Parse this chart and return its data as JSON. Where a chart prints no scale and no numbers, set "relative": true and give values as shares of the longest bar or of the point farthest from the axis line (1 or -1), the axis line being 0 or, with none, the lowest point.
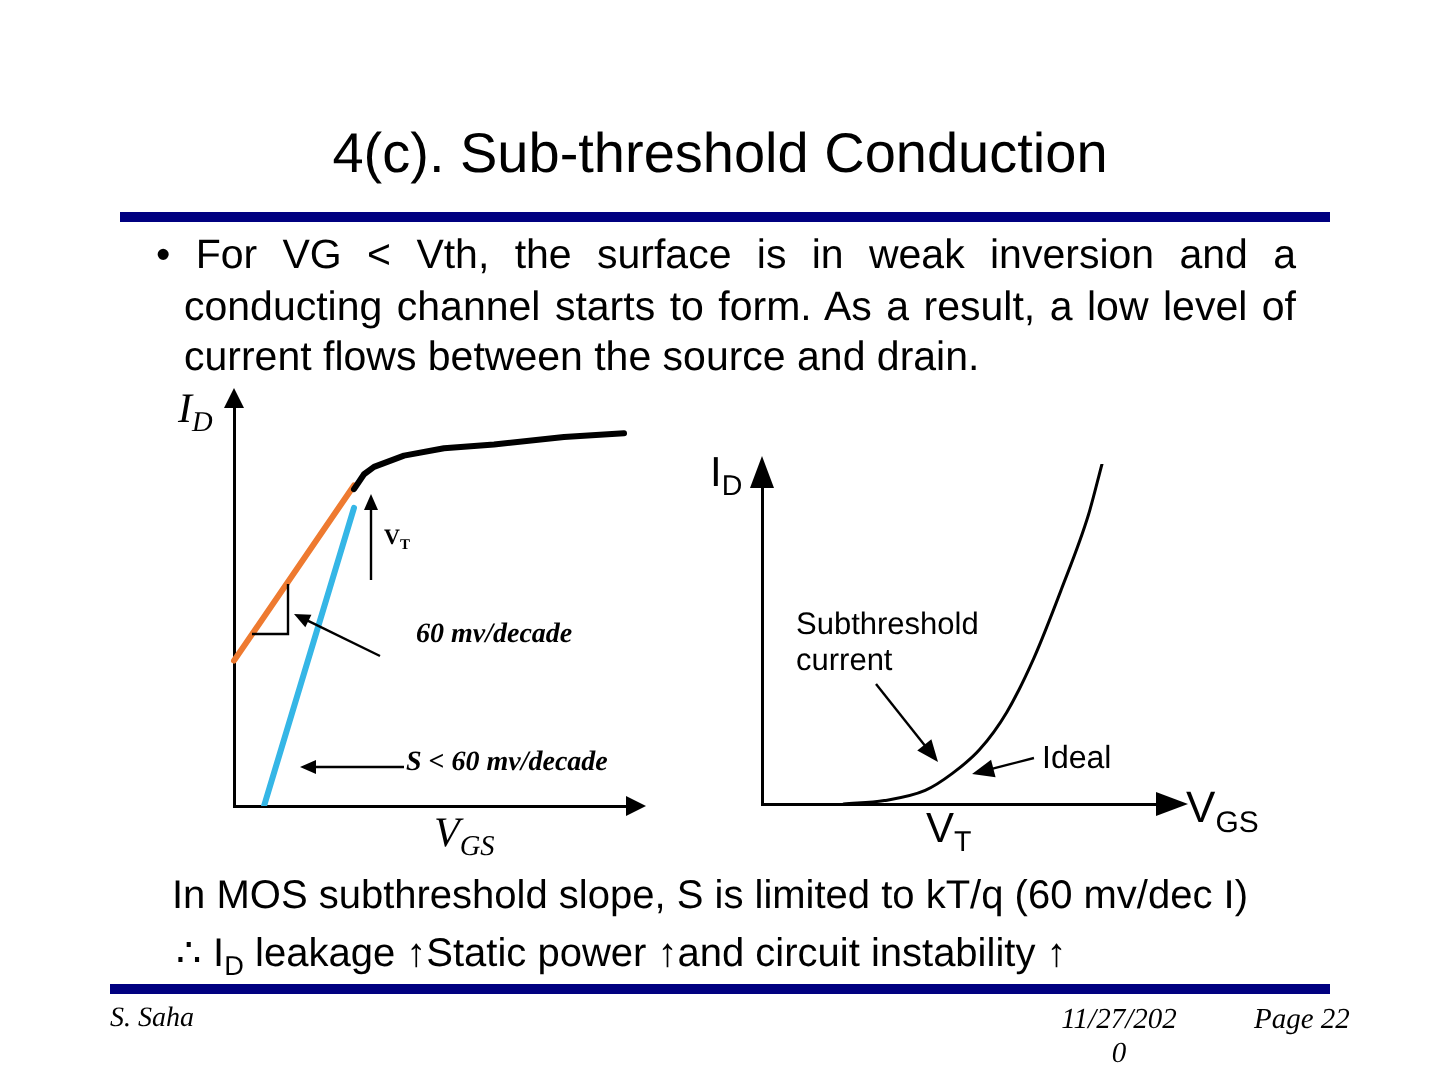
{
  "chart_data": [
    {
      "type": "other",
      "title": "4(c). Sub-threshold Conduction",
      "subtitle": "• For VG < Vth, the surface is in weak inversion and a conducting channel starts to form. As a result, a low level of current flows between the source and drain.",
      "annotations": [
        "In MOS subthreshold slope, S is limited to kT/q (60 mv/dec I)",
        "∴ I$_{D}$ leakage ↑Static power ↑and circuit instability ↑",
        "S. Saha",
        "11/27/2020",
        "Page 22"
      ]
    },
    {
      "type": "line",
      "relative": true,
      "tick_labels": false,
      "marker": "none",
      "xlabel": "V$_{GS}$",
      "ylabel": "I$_{D}$",
      "categories": [
        null,
        null,
        null,
        null,
        null,
        null,
        null,
        null,
        null,
        null,
        null,
        null,
        null,
        null,
        null,
        null,
        null,
        null,
        null,
        null,
        null,
        null,
        null,
        null,
        null,
        null,
        null,
        null,
        null,
        null,
        null,
        null,
        null,
        null,
        null,
        null,
        null,
        null,
        null,
        null,
        null
      ],
      "series": [
        {
          "color": "#000000",
          "values": [
            null,
            null,
            null,
            null,
            null,
            null,
            null,
            null,
            null,
            null,
            null,
            null,
            0.85,
            0.89,
            0.91,
            null,
            null,
            0.94,
            null,
            null,
            null,
            0.96,
            null,
            null,
            null,
            null,
            0.97,
            null,
            null,
            null,
            null,
            null,
            null,
            0.99,
            null,
            null,
            null,
            null,
            null,
            1,
            null
          ]
        },
        {
          "color": "#ee7a30",
          "values": [
            0.39,
            null,
            null,
            null,
            null,
            null,
            null,
            null,
            null,
            null,
            null,
            null,
            0.86,
            null,
            null,
            null,
            null,
            null,
            null,
            null,
            null,
            null,
            null,
            null,
            null,
            null,
            null,
            null,
            null,
            null,
            null,
            null,
            null,
            null,
            null,
            null,
            null,
            null,
            null,
            null,
            null
          ]
        },
        {
          "color": "#35b6e6",
          "values": [
            null,
            null,
            null,
            0,
            null,
            null,
            null,
            null,
            null,
            null,
            null,
            null,
            0.8,
            null,
            null,
            null,
            null,
            null,
            null,
            null,
            null,
            null,
            null,
            null,
            null,
            null,
            null,
            null,
            null,
            null,
            null,
            null,
            null,
            null,
            null,
            null,
            null,
            null,
            null,
            null,
            null
          ]
        }
      ],
      "annotations": [
        "V$_{T}$",
        "60 mv/decade",
        "S < 60 mv/decade"
      ]
    },
    {
      "type": "line",
      "relative": true,
      "tick_labels": false,
      "marker": "none",
      "xlabel": "V$_{GS}$",
      "ylabel": "I$_{D}$",
      "categories": [
        null,
        null,
        null,
        null,
        null,
        null,
        null,
        null,
        null,
        null,
        null,
        null,
        null,
        null,
        null,
        null,
        null,
        null,
        null,
        null,
        null,
        null,
        null,
        null,
        null,
        null,
        null,
        null,
        null,
        null,
        null
      ],
      "series": [
        {
          "color": "#000000",
          "values": [
            null,
            null,
            null,
            null,
            null,
            null,
            0,
            null,
            null,
            0.01,
            null,
            null,
            0.04,
            null,
            0.09,
            null,
            0.16,
            null,
            0.27,
            null,
            0.43,
            null,
            0.63,
            null,
            0.85,
            1,
            null,
            null,
            null,
            null,
            null
          ]
        }
      ],
      "annotations": [
        "Subthreshold current",
        "Ideal",
        "V$_{T}$"
      ]
    }
  ]
}
